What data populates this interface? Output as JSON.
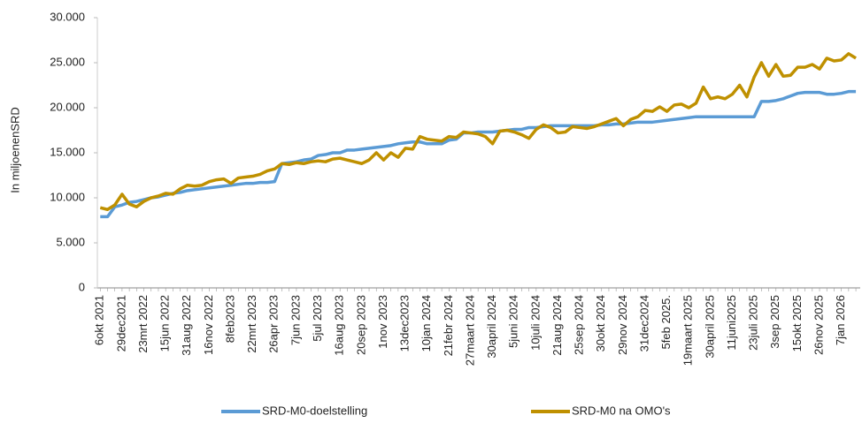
{
  "chart_data": {
    "type": "line",
    "y_label": "In miljoenenSRD",
    "categories": [
      "6okt 2021",
      null,
      null,
      "29dec2021",
      null,
      null,
      "23mrt 2022",
      null,
      null,
      "15jun 2022",
      null,
      null,
      "31aug 2022",
      null,
      null,
      "16nov 2022",
      null,
      null,
      "8feb2023",
      null,
      null,
      "22mrt 2023",
      null,
      null,
      "26apr 2023",
      null,
      null,
      "7jun 2023",
      null,
      null,
      "5jul 2023",
      null,
      null,
      "16aug 2023",
      null,
      null,
      "20sep 2023",
      null,
      null,
      "1nov 2023",
      null,
      null,
      "13dec2023",
      null,
      null,
      "10jan 2024",
      null,
      null,
      "21febr 2024",
      null,
      null,
      "27maart 2024",
      null,
      null,
      "30april 2024",
      null,
      null,
      "5juni 2024",
      null,
      null,
      "10juli 2024",
      null,
      null,
      "21aug 2024",
      null,
      null,
      "25sep 2024",
      null,
      null,
      "30okt 2024",
      null,
      null,
      "29nov 2024",
      null,
      null,
      "31dec2024",
      null,
      null,
      "5feb 2025.",
      null,
      null,
      "19maart 2025",
      null,
      null,
      "30april 2025",
      null,
      null,
      "11juni2025",
      null,
      null,
      "23juli 2025",
      null,
      null,
      "3sep 2025",
      null,
      null,
      "15okt 2025",
      null,
      null,
      "26nov 2025",
      null,
      null,
      "7jan 2026",
      null,
      null
    ],
    "series": [
      {
        "name": "SRD-M0-doelstelling",
        "color": "#5b9bd5",
        "values": [
          7900,
          7900,
          9000,
          9200,
          9500,
          9600,
          9800,
          10000,
          10100,
          10300,
          10500,
          10600,
          10800,
          10900,
          11000,
          11100,
          11200,
          11300,
          11400,
          11500,
          11600,
          11600,
          11700,
          11700,
          11800,
          13800,
          13900,
          14000,
          14200,
          14300,
          14700,
          14800,
          15000,
          15000,
          15300,
          15300,
          15400,
          15500,
          15600,
          15700,
          15800,
          16000,
          16100,
          16200,
          16200,
          16000,
          16000,
          16000,
          16400,
          16500,
          17200,
          17200,
          17300,
          17300,
          17300,
          17400,
          17500,
          17600,
          17600,
          17800,
          17800,
          17900,
          18000,
          18000,
          18000,
          18000,
          18000,
          18000,
          18000,
          18100,
          18100,
          18200,
          18200,
          18300,
          18400,
          18400,
          18400,
          18500,
          18600,
          18700,
          18800,
          18900,
          19000,
          19000,
          19000,
          19000,
          19000,
          19000,
          19000,
          19000,
          19000,
          20700,
          20700,
          20800,
          21000,
          21300,
          21600,
          21700,
          21700,
          21700,
          21500,
          21500,
          21600,
          21800,
          21800
        ]
      },
      {
        "name": "SRD-M0 na OMO's",
        "color": "#bf9000",
        "values": [
          8900,
          8700,
          9200,
          10400,
          9300,
          9000,
          9600,
          10000,
          10200,
          10500,
          10400,
          11000,
          11400,
          11300,
          11400,
          11800,
          12000,
          12100,
          11600,
          12200,
          12300,
          12400,
          12600,
          13000,
          13200,
          13800,
          13700,
          13900,
          13800,
          14000,
          14100,
          14000,
          14300,
          14400,
          14200,
          14000,
          13800,
          14200,
          15000,
          14200,
          15000,
          14500,
          15500,
          15400,
          16800,
          16500,
          16400,
          16300,
          16800,
          16700,
          17300,
          17200,
          17100,
          16800,
          16000,
          17400,
          17500,
          17300,
          17000,
          16600,
          17600,
          18100,
          17800,
          17200,
          17300,
          17900,
          17800,
          17700,
          17900,
          18200,
          18500,
          18800,
          18000,
          18700,
          19000,
          19700,
          19600,
          20100,
          19600,
          20300,
          20400,
          20000,
          20500,
          22300,
          21000,
          21200,
          21000,
          21500,
          22500,
          21200,
          23400,
          25000,
          23500,
          24800,
          23500,
          23600,
          24500,
          24500,
          24800,
          24300,
          25500,
          25200,
          25300,
          26000,
          25500
        ]
      }
    ],
    "ylim": [
      0,
      30000
    ],
    "yticks": [
      0,
      {
        "value": 5000,
        "label": "5.000"
      },
      {
        "value": 10000,
        "label": "10.000"
      },
      {
        "value": 15000,
        "label": "15.000"
      },
      {
        "value": 20000,
        "label": "20.000"
      },
      {
        "value": 25000,
        "label": "25.000"
      },
      {
        "value": 30000,
        "label": "30.000"
      }
    ],
    "grid": false
  }
}
